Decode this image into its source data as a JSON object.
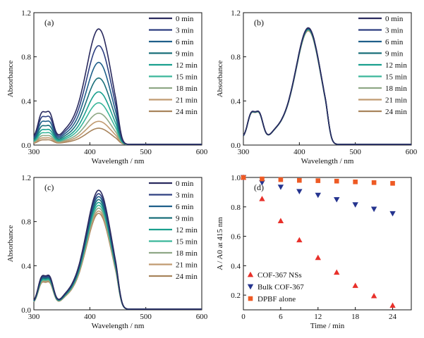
{
  "chart_data": [
    {
      "panel": "(a)",
      "type": "line",
      "xlabel": "Wavelength / nm",
      "ylabel": "Absorbance",
      "xlim": [
        300,
        600
      ],
      "ylim": [
        0,
        1.2
      ],
      "xticks": [
        "300",
        "400",
        "500",
        "600"
      ],
      "yticks": [
        "0.0",
        "0.4",
        "0.8",
        "1.2"
      ],
      "legend_position": "top-right",
      "series": [
        {
          "name": "0 min",
          "color": "#2a2a5e",
          "peak": 1.0
        },
        {
          "name": "3 min",
          "color": "#2e3f80",
          "peak": 0.855
        },
        {
          "name": "6 min",
          "color": "#1f5f8a",
          "peak": 0.71
        },
        {
          "name": "9 min",
          "color": "#1a6f7a",
          "peak": 0.575
        },
        {
          "name": "12 min",
          "color": "#1aa08e",
          "peak": 0.455
        },
        {
          "name": "15 min",
          "color": "#3ab69a",
          "peak": 0.36
        },
        {
          "name": "18 min",
          "color": "#8fa886",
          "peak": 0.27
        },
        {
          "name": "21 min",
          "color": "#c09a70",
          "peak": 0.2
        },
        {
          "name": "24 min",
          "color": "#a8845c",
          "peak": 0.14
        }
      ]
    },
    {
      "panel": "(b)",
      "type": "line",
      "xlabel": "Wavelength / nm",
      "ylabel": "Absorbance",
      "xlim": [
        300,
        600
      ],
      "ylim": [
        0,
        1.2
      ],
      "xticks": [
        "300",
        "400",
        "500",
        "600"
      ],
      "yticks": [
        "0.0",
        "0.4",
        "0.8",
        "1.2"
      ],
      "legend_position": "top-right",
      "series": [
        {
          "name": "0 min",
          "color": "#2a2a5e",
          "peak": 1.01
        },
        {
          "name": "3 min",
          "color": "#2e3f80",
          "peak": 1.007
        },
        {
          "name": "6 min",
          "color": "#1f5f8a",
          "peak": 1.004
        },
        {
          "name": "9 min",
          "color": "#1a6f7a",
          "peak": 1.0
        },
        {
          "name": "12 min",
          "color": "#1aa08e",
          "peak": 0.997
        },
        {
          "name": "15 min",
          "color": "#3ab69a",
          "peak": 0.994
        },
        {
          "name": "18 min",
          "color": "#8fa886",
          "peak": 0.99
        },
        {
          "name": "21 min",
          "color": "#c09a70",
          "peak": 0.987
        },
        {
          "name": "24 min",
          "color": "#a8845c",
          "peak": 0.984
        }
      ]
    },
    {
      "panel": "(c)",
      "type": "line",
      "xlabel": "Wavelength / nm",
      "ylabel": "Absorbance",
      "xlim": [
        300,
        600
      ],
      "ylim": [
        0,
        1.2
      ],
      "xticks": [
        "300",
        "400",
        "500",
        "600"
      ],
      "yticks": [
        "0.0",
        "0.4",
        "0.8",
        "1.2"
      ],
      "legend_position": "top-right",
      "series": [
        {
          "name": "0 min",
          "color": "#2a2a5e",
          "peak": 1.03
        },
        {
          "name": "3 min",
          "color": "#2e3f80",
          "peak": 1.0
        },
        {
          "name": "6 min",
          "color": "#1f5f8a",
          "peak": 0.975
        },
        {
          "name": "9 min",
          "color": "#1a6f7a",
          "peak": 0.95
        },
        {
          "name": "12 min",
          "color": "#1aa08e",
          "peak": 0.925
        },
        {
          "name": "15 min",
          "color": "#3ab69a",
          "peak": 0.9
        },
        {
          "name": "18 min",
          "color": "#8fa886",
          "peak": 0.875
        },
        {
          "name": "21 min",
          "color": "#c09a70",
          "peak": 0.85
        },
        {
          "name": "24 min",
          "color": "#a8845c",
          "peak": 0.83
        }
      ]
    },
    {
      "panel": "(d)",
      "type": "scatter",
      "xlabel": "Time / min",
      "ylabel": "A / A0 at 415 nm",
      "xlim": [
        0,
        27
      ],
      "ylim": [
        0.1,
        1.0
      ],
      "xticks": [
        "0",
        "6",
        "12",
        "18",
        "24"
      ],
      "yticks": [
        "0.2",
        "0.4",
        "0.6",
        "0.8",
        "1.0"
      ],
      "legend_position": "bottom-left",
      "x": [
        0,
        3,
        6,
        9,
        12,
        15,
        18,
        21,
        24
      ],
      "series": [
        {
          "name": "COF-367 NSs",
          "marker": "triangle-up",
          "color": "#e8302a",
          "values": [
            1.0,
            0.855,
            0.705,
            0.575,
            0.455,
            0.355,
            0.265,
            0.195,
            0.13
          ]
        },
        {
          "name": "Bulk COF-367",
          "marker": "triangle-down",
          "color": "#25348f",
          "values": [
            1.0,
            0.965,
            0.935,
            0.905,
            0.88,
            0.85,
            0.815,
            0.785,
            0.755
          ]
        },
        {
          "name": "DPBF alone",
          "marker": "square",
          "color": "#ee5a24",
          "values": [
            1.0,
            0.99,
            0.985,
            0.98,
            0.978,
            0.975,
            0.97,
            0.965,
            0.96
          ]
        }
      ]
    }
  ]
}
